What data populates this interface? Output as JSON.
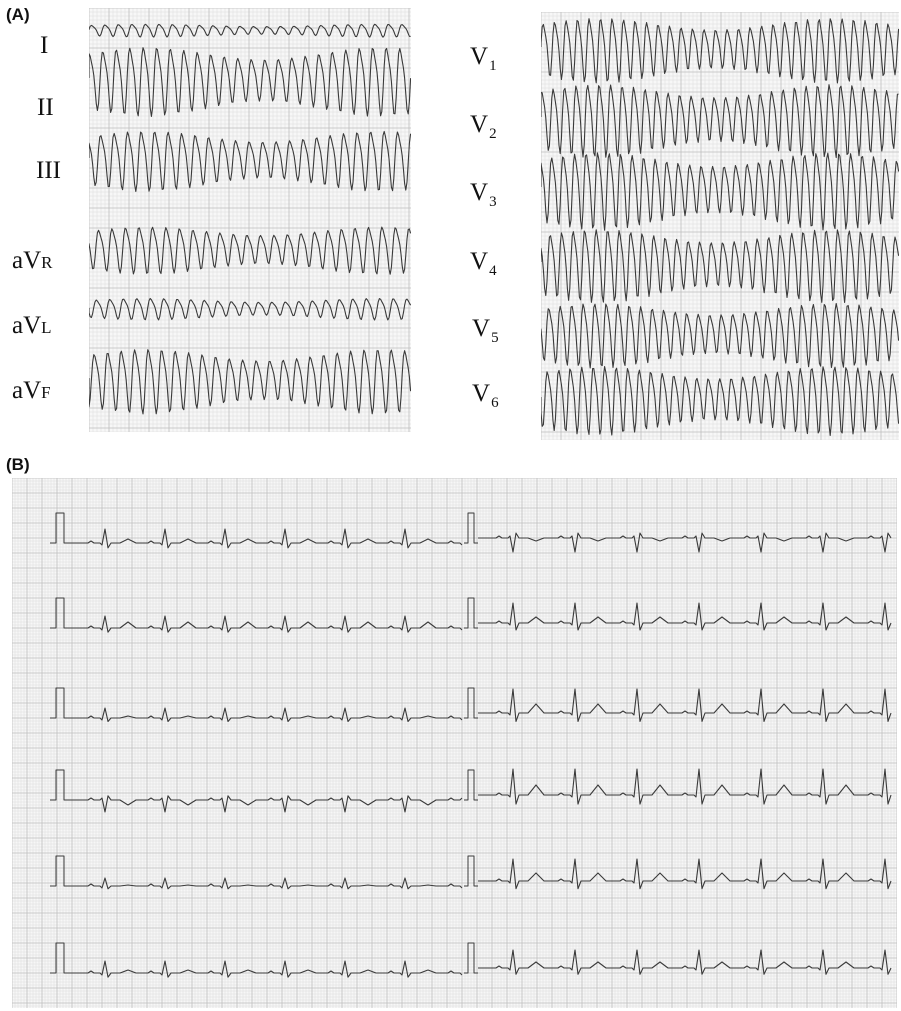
{
  "panels": {
    "a": {
      "label": "(A)"
    },
    "b": {
      "label": "(B)"
    }
  },
  "panel_a": {
    "limb_leads": [
      {
        "name": "I"
      },
      {
        "name": "II"
      },
      {
        "name": "III"
      },
      {
        "name": "aV",
        "sub": "R"
      },
      {
        "name": "aV",
        "sub": "L"
      },
      {
        "name": "aV",
        "sub": "F"
      }
    ],
    "chest_leads": [
      {
        "name": "V",
        "sub": "1"
      },
      {
        "name": "V",
        "sub": "2"
      },
      {
        "name": "V",
        "sub": "3"
      },
      {
        "name": "V",
        "sub": "4"
      },
      {
        "name": "V",
        "sub": "5"
      },
      {
        "name": "V",
        "sub": "6"
      }
    ]
  },
  "colors": {
    "grid_minor": "#dcdcdc",
    "grid_major": "#bdbdbd",
    "trace": "#3a3a3a",
    "paper": "#f7f7f7"
  }
}
